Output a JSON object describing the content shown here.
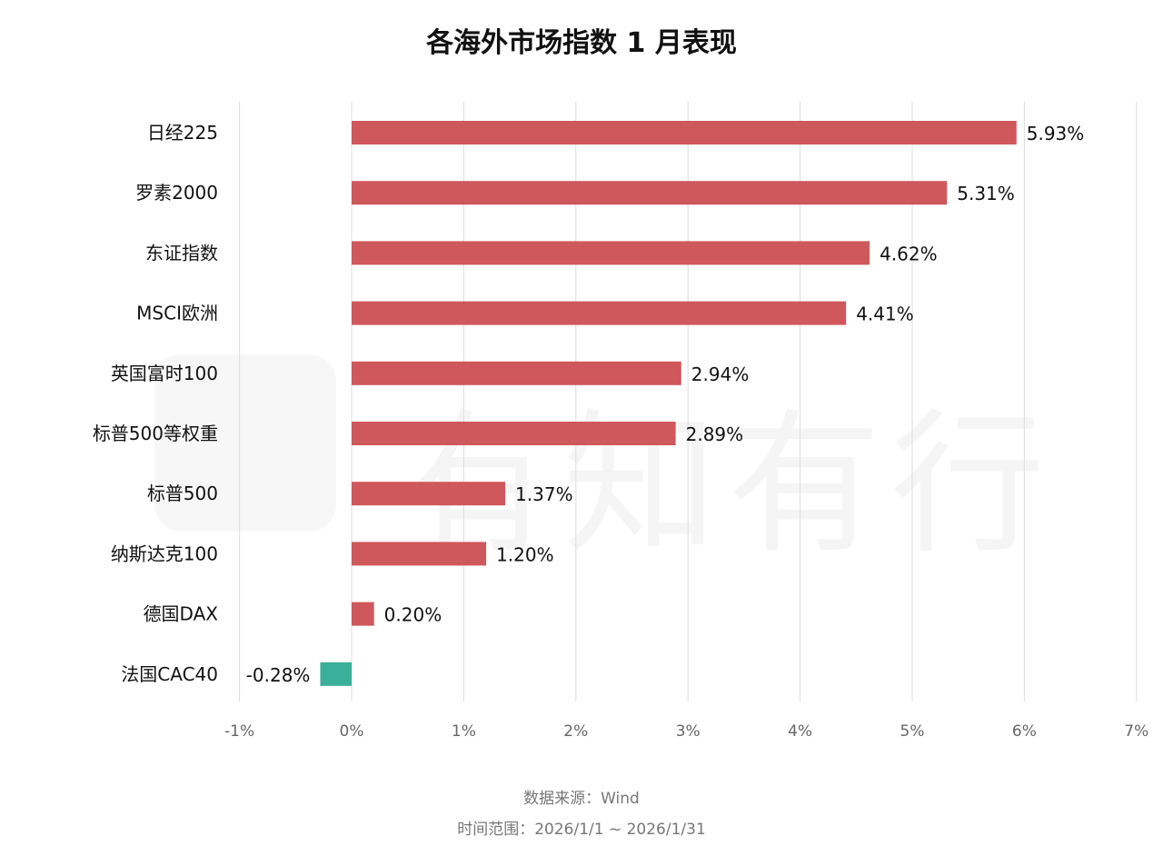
{
  "chart_data": {
    "type": "bar",
    "orientation": "horizontal",
    "title": "各海外市场指数 1 月表现",
    "categories": [
      "日经225",
      "罗素2000",
      "东证指数",
      "MSCI欧洲",
      "英国富时100",
      "标普500等权重",
      "标普500",
      "纳斯达克100",
      "德国DAX",
      "法国CAC40"
    ],
    "values": [
      5.93,
      5.31,
      4.62,
      4.41,
      2.94,
      2.89,
      1.37,
      1.2,
      0.2,
      -0.28
    ],
    "data_labels": [
      "5.93%",
      "5.31%",
      "4.62%",
      "4.41%",
      "2.94%",
      "2.89%",
      "1.37%",
      "1.20%",
      "0.20%",
      "-0.28%"
    ],
    "xlim": [
      -1,
      7
    ],
    "xticks": [
      -1,
      0,
      1,
      2,
      3,
      4,
      5,
      6,
      7
    ],
    "xtick_labels": [
      "-1%",
      "0%",
      "1%",
      "2%",
      "3%",
      "4%",
      "5%",
      "6%",
      "7%"
    ],
    "xlabel": "",
    "ylabel": "",
    "grid": "vertical",
    "colors": {
      "positive": "#CF585C",
      "negative": "#3AAF99",
      "grid": "#DDDDDD"
    }
  },
  "footer": {
    "source": "数据来源：Wind",
    "range": "时间范围：2026/1/1 ~ 2026/1/31"
  },
  "watermark": "有知有行"
}
